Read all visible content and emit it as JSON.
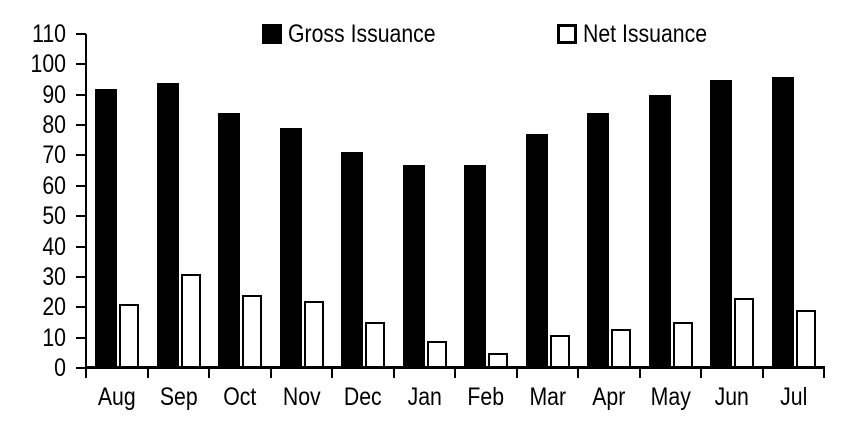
{
  "chart_data": {
    "type": "bar",
    "title": "",
    "categories": [
      "Aug",
      "Sep",
      "Oct",
      "Nov",
      "Dec",
      "Jan",
      "Feb",
      "Mar",
      "Apr",
      "May",
      "Jun",
      "Jul"
    ],
    "series": [
      {
        "name": "Gross Issuance",
        "swatch": "solid-black-square",
        "fill": "#000000",
        "values": [
          92,
          94,
          84,
          79,
          71,
          67,
          67,
          77,
          84,
          90,
          95,
          96
        ]
      },
      {
        "name": "Net Issuance",
        "swatch": "white-square-black-outline",
        "fill": "#ffffff",
        "stroke": "#000000",
        "values": [
          21,
          31,
          24,
          22,
          15,
          9,
          5,
          11,
          13,
          15,
          23,
          19
        ]
      }
    ],
    "xlabel": "",
    "ylabel": "",
    "ylim": [
      0,
      110
    ],
    "ytick_step": 10,
    "y_tick_labels": [
      "0",
      "10",
      "20",
      "30",
      "40",
      "50",
      "60",
      "70",
      "80",
      "90",
      "100",
      "110"
    ],
    "grid": false,
    "legend_position": "top",
    "colors": {
      "axis": "#000000",
      "text": "#000000",
      "background": "#ffffff"
    }
  }
}
